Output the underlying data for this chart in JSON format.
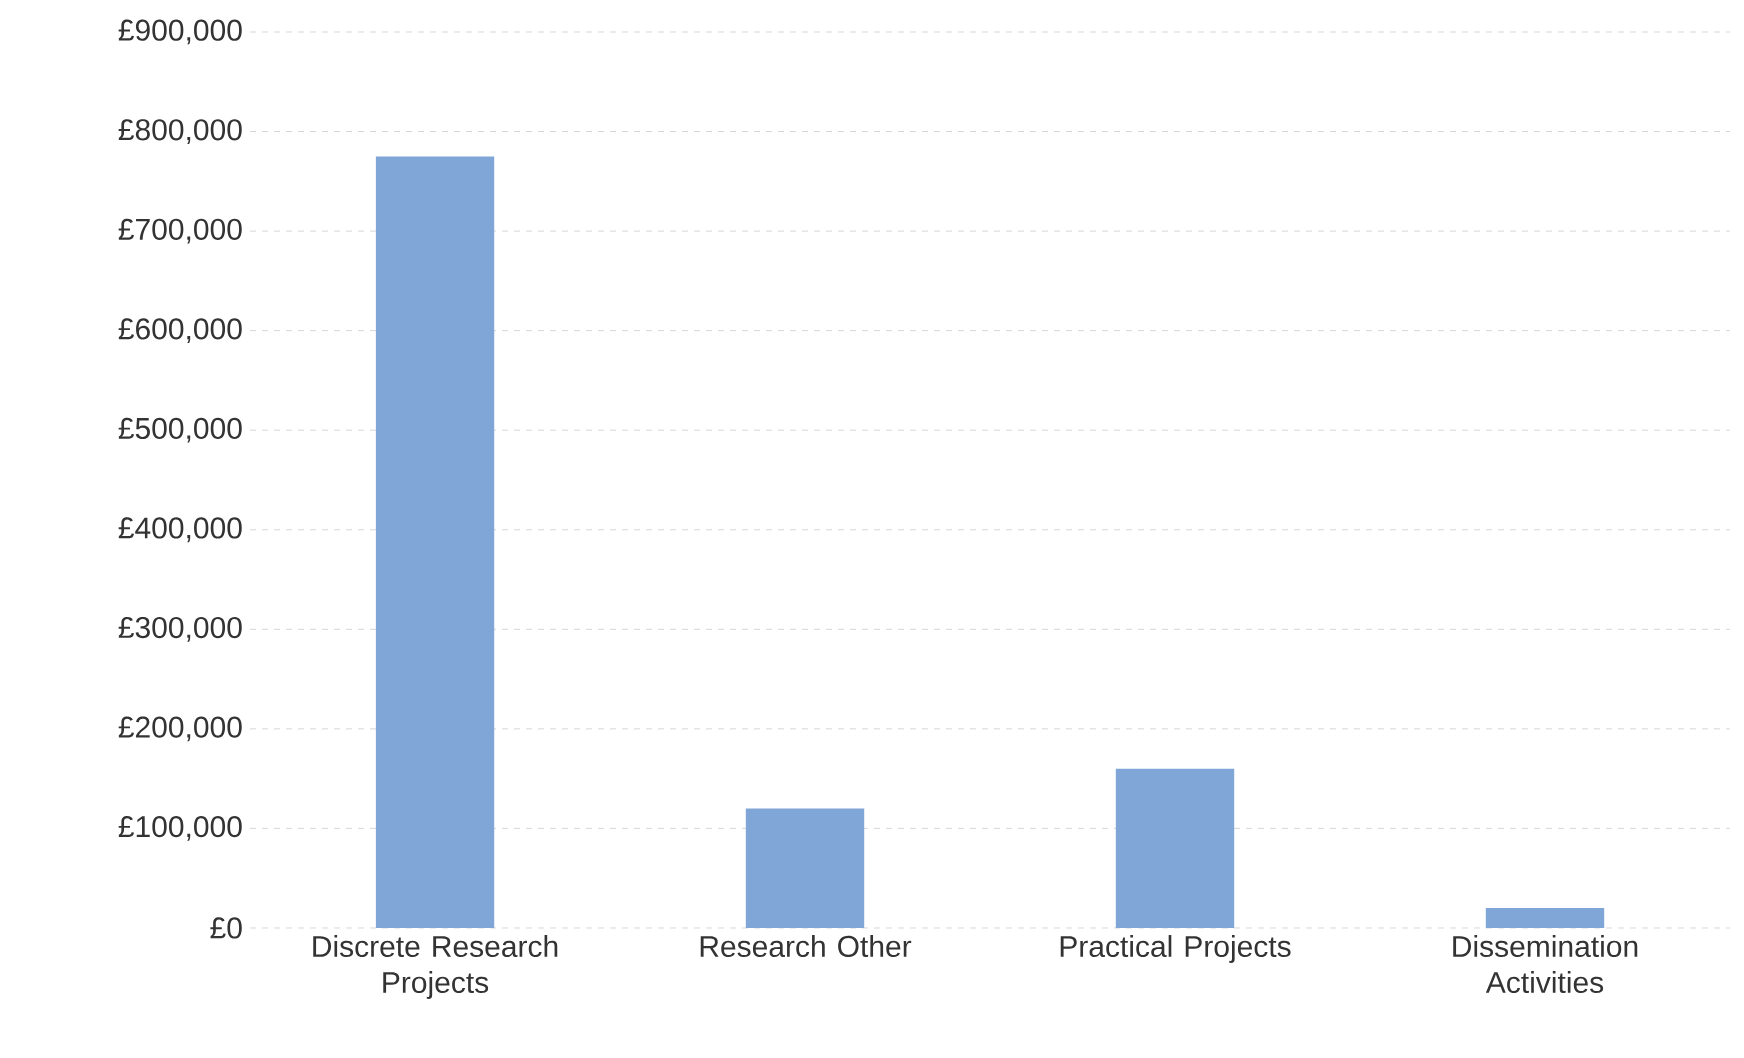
{
  "chart_data": {
    "type": "bar",
    "categories": [
      "Discrete Research Projects",
      "Research Other",
      "Practical Projects",
      "Dissemination Activities"
    ],
    "values": [
      775000,
      120000,
      160000,
      20000
    ],
    "color": "#7fa6d6",
    "ylim": [
      0,
      900000
    ],
    "yticks": [
      {
        "value": 0,
        "label": "£0"
      },
      {
        "value": 100000,
        "label": "£100,000"
      },
      {
        "value": 200000,
        "label": "£200,000"
      },
      {
        "value": 300000,
        "label": "£300,000"
      },
      {
        "value": 400000,
        "label": "£400,000"
      },
      {
        "value": 500000,
        "label": "£500,000"
      },
      {
        "value": 600000,
        "label": "£600,000"
      },
      {
        "value": 700000,
        "label": "£700,000"
      },
      {
        "value": 800000,
        "label": "£800,000"
      },
      {
        "value": 900000,
        "label": "£900,000"
      }
    ],
    "grid": "y"
  }
}
